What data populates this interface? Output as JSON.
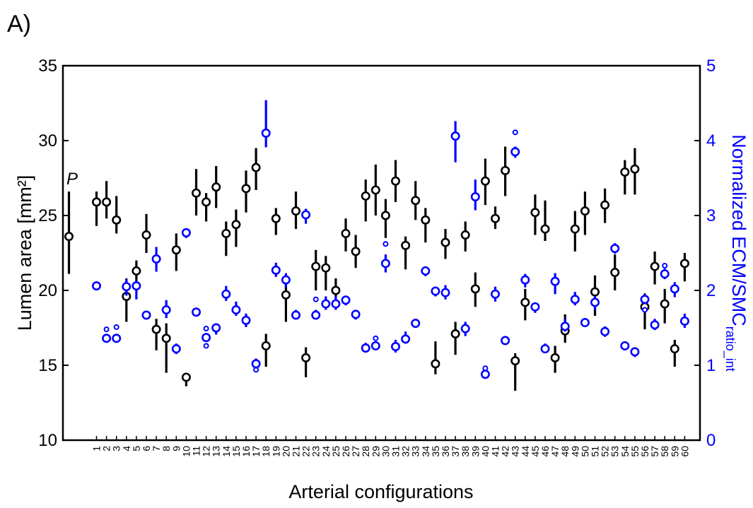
{
  "panel_label": "A)",
  "chart_data": {
    "type": "scatter",
    "xlabel": "Arterial configurations",
    "ylabel_left": "Lumen area [mm²]",
    "ylabel_right": {
      "main": "Normalized ECM/SMC",
      "subscript": "ratio_int"
    },
    "ylim_left": [
      10,
      35
    ],
    "ylim_right": [
      0,
      5
    ],
    "yticks_left": [
      "10",
      "15",
      "20",
      "25",
      "30",
      "35"
    ],
    "yticks_right": [
      "0",
      "1",
      "2",
      "3",
      "4",
      "5"
    ],
    "x_tick_labels": [
      "1",
      "2",
      "3",
      "4",
      "5",
      "6",
      "7",
      "8",
      "9",
      "10",
      "11",
      "12",
      "13",
      "14",
      "15",
      "16",
      "17",
      "18",
      "19",
      "20",
      "21",
      "22",
      "23",
      "24",
      "25",
      "26",
      "27",
      "28",
      "29",
      "30",
      "31",
      "32",
      "33",
      "34",
      "35",
      "36",
      "37",
      "38",
      "39",
      "40",
      "41",
      "42",
      "43",
      "44",
      "45",
      "46",
      "47",
      "48",
      "49",
      "50",
      "51",
      "52",
      "53",
      "54",
      "55",
      "56",
      "57",
      "58",
      "59",
      "60"
    ],
    "grid": false,
    "colors": {
      "left_series": "#000000",
      "right_series": "#0000ff"
    },
    "reference": {
      "label": "P",
      "lumen_area": 23.6,
      "lumen_area_error": [
        21.1,
        26.6
      ]
    },
    "series": [
      {
        "axis": "left",
        "values": [
          25.9,
          25.9,
          24.7,
          19.6,
          21.3,
          23.7,
          17.4,
          16.8,
          22.7,
          14.2,
          26.5,
          25.9,
          26.9,
          23.8,
          24.4,
          26.8,
          28.2,
          16.3,
          24.8,
          19.7,
          25.3,
          15.5,
          21.6,
          21.5,
          20.0,
          23.8,
          22.6,
          26.3,
          26.7,
          25.0,
          27.3,
          23.0,
          26.0,
          24.7,
          15.1,
          23.2,
          17.1,
          23.7,
          20.1,
          27.3,
          24.8,
          28.0,
          15.3,
          19.2,
          25.2,
          24.1,
          15.5,
          17.3,
          24.1,
          25.3,
          19.9,
          25.7,
          21.2,
          27.9,
          28.1,
          18.9,
          21.6,
          19.1,
          16.1,
          21.8
        ],
        "error_low": [
          24.3,
          24.8,
          23.8,
          17.9,
          20.4,
          22.5,
          16.0,
          14.5,
          21.3,
          13.6,
          25.0,
          24.6,
          25.5,
          22.3,
          22.9,
          25.2,
          26.7,
          14.9,
          23.7,
          17.9,
          24.1,
          14.2,
          20.0,
          20.0,
          19.5,
          22.6,
          21.5,
          24.6,
          25.0,
          23.5,
          25.9,
          21.4,
          24.7,
          23.2,
          14.4,
          22.1,
          15.7,
          22.6,
          18.9,
          25.7,
          24.1,
          26.3,
          13.3,
          18.0,
          23.7,
          23.3,
          14.5,
          16.5,
          22.6,
          23.7,
          18.3,
          24.5,
          20.0,
          26.4,
          26.4,
          17.4,
          20.4,
          17.8,
          14.9,
          20.6
        ],
        "error_high": [
          26.6,
          27.3,
          26.3,
          20.8,
          22.0,
          25.1,
          18.1,
          17.8,
          23.8,
          14.5,
          28.1,
          26.5,
          28.3,
          24.6,
          25.4,
          28.0,
          29.5,
          17.1,
          25.5,
          20.8,
          26.6,
          16.2,
          22.7,
          22.3,
          20.8,
          24.8,
          23.7,
          27.4,
          28.4,
          26.1,
          28.7,
          23.6,
          27.3,
          25.5,
          16.6,
          24.1,
          17.9,
          24.6,
          21.2,
          28.8,
          25.6,
          29.6,
          15.8,
          20.1,
          26.4,
          26.0,
          16.3,
          18.4,
          25.3,
          26.6,
          21.0,
          26.8,
          22.4,
          28.7,
          29.5,
          19.8,
          22.6,
          20.1,
          16.7,
          22.5
        ]
      },
      {
        "axis": "right",
        "values": [
          2.06,
          1.36,
          1.36,
          2.05,
          2.06,
          1.67,
          2.42,
          1.74,
          1.22,
          2.77,
          1.71,
          1.37,
          1.5,
          1.95,
          1.74,
          1.6,
          1.02,
          4.1,
          2.27,
          2.14,
          1.67,
          3.01,
          1.67,
          1.82,
          1.82,
          1.87,
          1.68,
          1.23,
          1.26,
          2.36,
          1.25,
          1.35,
          1.56,
          2.26,
          1.99,
          1.97,
          4.06,
          1.49,
          3.25,
          0.88,
          1.95,
          1.33,
          3.85,
          2.14,
          1.78,
          1.22,
          2.12,
          1.52,
          1.88,
          1.57,
          1.84,
          1.45,
          2.56,
          1.26,
          1.18,
          1.88,
          1.54,
          2.22,
          2.02,
          1.59
        ],
        "error_low": [
          2.0,
          1.32,
          1.31,
          1.93,
          1.88,
          1.62,
          2.25,
          1.63,
          1.15,
          2.7,
          1.67,
          1.32,
          1.41,
          1.86,
          1.66,
          1.51,
          0.94,
          3.91,
          2.18,
          2.04,
          1.62,
          2.89,
          1.62,
          1.74,
          1.74,
          1.8,
          1.61,
          1.17,
          1.2,
          2.24,
          1.17,
          1.29,
          1.51,
          2.19,
          1.92,
          1.88,
          3.71,
          1.39,
          3.07,
          0.82,
          1.85,
          1.29,
          3.77,
          2.04,
          1.7,
          1.17,
          1.95,
          1.45,
          1.8,
          1.51,
          1.74,
          1.38,
          2.49,
          1.2,
          1.11,
          1.82,
          1.47,
          2.15,
          1.91,
          1.5
        ],
        "error_high": [
          2.12,
          1.42,
          1.42,
          2.15,
          2.13,
          1.72,
          2.58,
          1.87,
          1.29,
          2.83,
          1.76,
          1.43,
          1.56,
          2.06,
          1.85,
          1.69,
          1.09,
          4.54,
          2.37,
          2.23,
          1.74,
          3.09,
          1.74,
          1.92,
          1.92,
          1.93,
          1.74,
          1.3,
          1.32,
          2.48,
          1.34,
          1.45,
          1.62,
          2.32,
          2.05,
          2.07,
          4.26,
          1.58,
          3.48,
          0.94,
          2.05,
          1.39,
          3.92,
          2.22,
          1.84,
          1.29,
          2.23,
          1.62,
          1.98,
          1.63,
          1.93,
          1.52,
          2.63,
          1.32,
          1.24,
          1.95,
          1.62,
          2.29,
          2.11,
          1.69
        ],
        "outliers": [
          {
            "x": "2",
            "value": 1.48
          },
          {
            "x": "3",
            "value": 1.51
          },
          {
            "x": "12",
            "value": 1.26
          },
          {
            "x": "12",
            "value": 1.49
          },
          {
            "x": "17",
            "value": 0.94
          },
          {
            "x": "23",
            "value": 1.88
          },
          {
            "x": "29",
            "value": 1.36
          },
          {
            "x": "30",
            "value": 2.62
          },
          {
            "x": "40",
            "value": 0.96
          },
          {
            "x": "43",
            "value": 4.11
          },
          {
            "x": "56",
            "value": 1.74
          },
          {
            "x": "58",
            "value": 2.33
          }
        ]
      }
    ]
  }
}
